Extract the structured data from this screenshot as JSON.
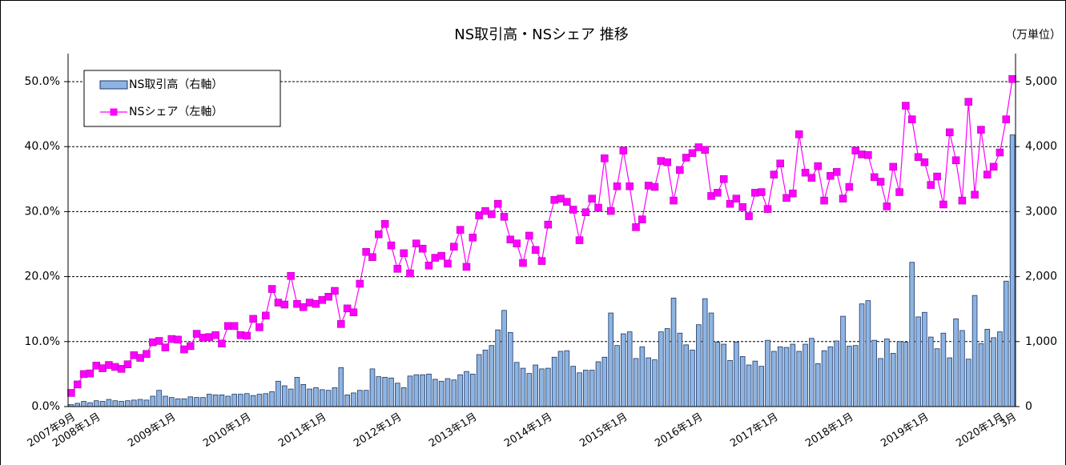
{
  "chart_data": {
    "type": "combo",
    "title": "NS取引高・NSシェア 推移",
    "y2_unit_label": "（万単位）",
    "categories": [
      "2007年9月",
      null,
      null,
      null,
      "2008年1月",
      null,
      null,
      null,
      null,
      null,
      null,
      null,
      null,
      null,
      null,
      null,
      "2009年1月",
      null,
      null,
      null,
      null,
      null,
      null,
      null,
      null,
      null,
      null,
      null,
      "2010年1月",
      null,
      null,
      null,
      null,
      null,
      null,
      null,
      null,
      null,
      null,
      null,
      "2011年1月",
      null,
      null,
      null,
      null,
      null,
      null,
      null,
      null,
      null,
      null,
      null,
      "2012年1月",
      null,
      null,
      null,
      null,
      null,
      null,
      null,
      null,
      null,
      null,
      null,
      "2013年1月",
      null,
      null,
      null,
      null,
      null,
      null,
      null,
      null,
      null,
      null,
      null,
      "2014年1月",
      null,
      null,
      null,
      null,
      null,
      null,
      null,
      null,
      null,
      null,
      null,
      "2015年1月",
      null,
      null,
      null,
      null,
      null,
      null,
      null,
      null,
      null,
      null,
      null,
      "2016年1月",
      null,
      null,
      null,
      null,
      null,
      null,
      null,
      null,
      null,
      null,
      null,
      "2017年1月",
      null,
      null,
      null,
      null,
      null,
      null,
      null,
      null,
      null,
      null,
      null,
      "2018年1月",
      null,
      null,
      null,
      null,
      null,
      null,
      null,
      null,
      null,
      null,
      null,
      "2019年1月",
      null,
      null,
      null,
      null,
      null,
      null,
      null,
      null,
      null,
      null,
      null,
      "2020年1月",
      null,
      "3月"
    ],
    "series": [
      {
        "name": "NS取引高（右軸）",
        "type": "bar",
        "axis": "y2",
        "color": "#8db4e2",
        "edge_color": "#1f3864",
        "values": [
          30,
          50,
          80,
          60,
          90,
          80,
          110,
          90,
          80,
          90,
          100,
          110,
          100,
          160,
          250,
          160,
          140,
          120,
          120,
          150,
          140,
          140,
          190,
          180,
          180,
          160,
          190,
          190,
          200,
          170,
          190,
          200,
          230,
          390,
          320,
          270,
          450,
          340,
          270,
          290,
          260,
          250,
          290,
          600,
          180,
          210,
          250,
          250,
          580,
          460,
          450,
          440,
          360,
          290,
          470,
          490,
          490,
          500,
          420,
          390,
          430,
          410,
          490,
          540,
          500,
          800,
          870,
          940,
          1180,
          1480,
          1140,
          680,
          590,
          510,
          640,
          580,
          590,
          760,
          850,
          860,
          620,
          520,
          560,
          560,
          690,
          760,
          1440,
          940,
          1120,
          1150,
          740,
          920,
          750,
          720,
          1150,
          1200,
          1670,
          1130,
          950,
          870,
          1260,
          1660,
          1440,
          990,
          960,
          710,
          990,
          770,
          640,
          700,
          620,
          1020,
          850,
          920,
          910,
          960,
          850,
          960,
          1050,
          660,
          860,
          920,
          1010,
          1390,
          930,
          940,
          1580,
          1630,
          1020,
          740,
          1040,
          820,
          1000,
          990,
          2220,
          1380,
          1450,
          1070,
          890,
          1130,
          750,
          1350,
          1170,
          730,
          1710,
          970,
          1190,
          1060,
          1150,
          1930,
          4180
        ]
      },
      {
        "name": "NSシェア（左軸）",
        "type": "line",
        "axis": "y",
        "color": "#ff00ff",
        "values": [
          2.1,
          3.4,
          5.0,
          5.1,
          6.3,
          5.9,
          6.4,
          6.1,
          5.8,
          6.5,
          7.9,
          7.5,
          8.1,
          9.9,
          10.1,
          9.1,
          10.4,
          10.3,
          8.8,
          9.3,
          11.2,
          10.6,
          10.7,
          11.0,
          9.7,
          12.4,
          12.4,
          11.0,
          10.9,
          13.5,
          12.2,
          14.0,
          18.1,
          16.0,
          15.7,
          20.1,
          15.8,
          15.3,
          16.0,
          15.8,
          16.4,
          16.9,
          17.8,
          12.7,
          15.1,
          14.5,
          18.9,
          23.8,
          23.0,
          26.5,
          28.1,
          24.8,
          21.2,
          23.6,
          20.5,
          25.1,
          24.3,
          21.7,
          22.9,
          23.2,
          22.0,
          24.6,
          27.2,
          21.5,
          26.0,
          29.4,
          30.1,
          29.6,
          31.2,
          29.2,
          25.7,
          25.1,
          22.1,
          26.3,
          24.1,
          22.4,
          28.0,
          31.8,
          32.0,
          31.5,
          30.3,
          25.6,
          29.9,
          32.0,
          30.6,
          38.2,
          30.1,
          33.9,
          39.4,
          33.9,
          27.6,
          28.8,
          34.0,
          33.8,
          37.8,
          37.6,
          31.7,
          36.4,
          38.3,
          39.0,
          39.9,
          39.5,
          32.4,
          32.9,
          35.0,
          31.2,
          32.0,
          30.7,
          29.3,
          32.9,
          33.0,
          30.4,
          35.7,
          37.4,
          32.1,
          32.8,
          41.9,
          36.0,
          35.2,
          37.0,
          31.7,
          35.5,
          36.1,
          32.0,
          33.8,
          39.4,
          38.8,
          38.7,
          35.3,
          34.6,
          30.8,
          36.9,
          33.0,
          46.3,
          44.2,
          38.4,
          37.6,
          34.1,
          35.4,
          31.1,
          42.2,
          37.9,
          31.7,
          46.9,
          32.6,
          42.6,
          35.7,
          36.9,
          39.1,
          44.2,
          50.4
        ]
      }
    ],
    "ylim": [
      0,
      50
    ],
    "yticks": [
      {
        "value": 0,
        "label": "0.0%"
      },
      {
        "value": 10,
        "label": "10.0%"
      },
      {
        "value": 20,
        "label": "20.0%"
      },
      {
        "value": 30,
        "label": "30.0%"
      },
      {
        "value": 40,
        "label": "40.0%"
      },
      {
        "value": 50,
        "label": "50.0%"
      }
    ],
    "y2lim": [
      0,
      5000
    ],
    "y2ticks": [
      0,
      {
        "value": 1000,
        "label": "1,000"
      },
      {
        "value": 2000,
        "label": "2,000"
      },
      {
        "value": 3000,
        "label": "3,000"
      },
      {
        "value": 4000,
        "label": "4,000"
      },
      {
        "value": 5000,
        "label": "5,000"
      }
    ],
    "grid": true,
    "legend": "upper left"
  }
}
